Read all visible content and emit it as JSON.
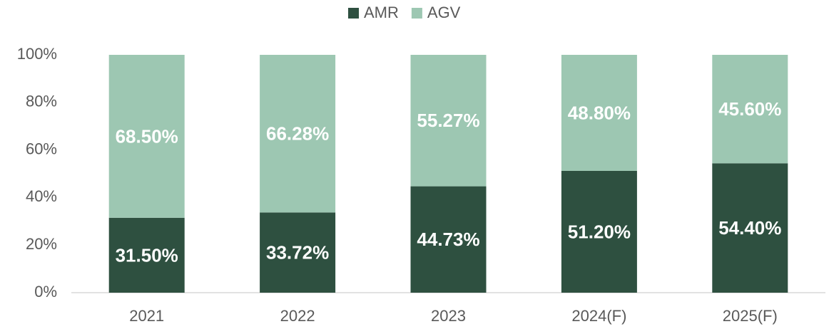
{
  "chart_data": {
    "type": "stacked_bar",
    "categories": [
      "2021",
      "2022",
      "2023",
      "2024(F)",
      "2025(F)"
    ],
    "series": [
      {
        "name": "AMR",
        "color": "#2e5040",
        "values": [
          31.5,
          33.72,
          44.73,
          51.2,
          54.4
        ],
        "value_labels": [
          "31.50%",
          "33.72%",
          "44.73%",
          "51.20%",
          "54.40%"
        ]
      },
      {
        "name": "AGV",
        "color": "#9dc7b2",
        "values": [
          68.5,
          66.28,
          55.27,
          48.8,
          45.6
        ],
        "value_labels": [
          "68.50%",
          "66.28%",
          "55.27%",
          "48.80%",
          "45.60%"
        ]
      }
    ],
    "ylim": [
      0,
      100
    ],
    "yticks": [
      {
        "value": 0,
        "label": "0%"
      },
      {
        "value": 20,
        "label": "20%"
      },
      {
        "value": 40,
        "label": "40%"
      },
      {
        "value": 60,
        "label": "60%"
      },
      {
        "value": 80,
        "label": "80%"
      },
      {
        "value": 100,
        "label": "100%"
      }
    ],
    "legend": "top"
  }
}
